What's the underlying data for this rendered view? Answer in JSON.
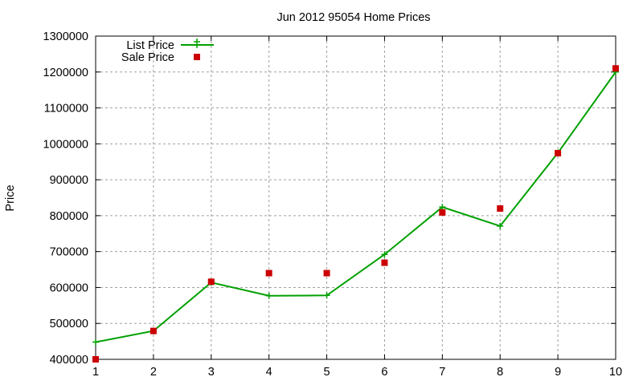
{
  "chart_data": {
    "type": "line",
    "title": "Jun 2012 95054 Home Prices",
    "xlabel": "",
    "ylabel": "Price",
    "x": [
      1,
      2,
      3,
      4,
      5,
      6,
      7,
      8,
      9,
      10
    ],
    "xlim": [
      1,
      10
    ],
    "ylim": [
      400000,
      1300000
    ],
    "xticks": [
      "1",
      "2",
      "3",
      "4",
      "5",
      "6",
      "7",
      "8",
      "9",
      "10"
    ],
    "yticks": [
      "400000",
      "500000",
      "600000",
      "700000",
      "800000",
      "900000",
      "1000000",
      "1100000",
      "1200000",
      "1300000"
    ],
    "grid": true,
    "legend_position": "top-left",
    "series": [
      {
        "name": "List Price",
        "style": "linespoints",
        "color": "#00a000",
        "marker": "plus",
        "values": [
          448000,
          479000,
          614000,
          577000,
          578000,
          692000,
          824000,
          771000,
          975000,
          1200000
        ]
      },
      {
        "name": "Sale Price",
        "style": "points",
        "color": "#cc0000",
        "marker": "square",
        "values": [
          400000,
          479000,
          616000,
          640000,
          640000,
          669000,
          809000,
          820000,
          974000,
          1210000
        ]
      }
    ]
  }
}
